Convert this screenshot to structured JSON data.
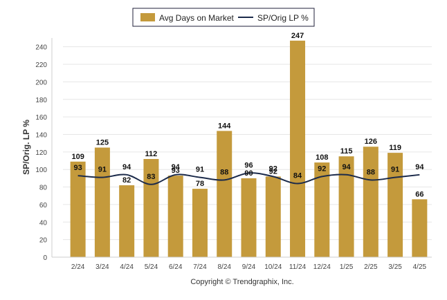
{
  "chart_data": {
    "type": "bar",
    "categories": [
      "2/24",
      "3/24",
      "4/24",
      "5/24",
      "6/24",
      "7/24",
      "8/24",
      "9/24",
      "10/24",
      "11/24",
      "12/24",
      "1/25",
      "2/25",
      "3/25",
      "4/25"
    ],
    "series": [
      {
        "name": "Avg Days on Market",
        "type": "bar",
        "color": "#c49a3c",
        "values": [
          109,
          125,
          82,
          112,
          93,
          78,
          144,
          90,
          92,
          247,
          108,
          115,
          126,
          119,
          66
        ]
      },
      {
        "name": "SP/Orig LP %",
        "type": "line",
        "color": "#1b2a4a",
        "values": [
          93,
          91,
          94,
          83,
          94,
          91,
          88,
          96,
          92,
          84,
          92,
          94,
          88,
          91,
          94
        ]
      }
    ],
    "ylabel": "SP/Orig. LP %",
    "ylim": [
      0,
      250
    ],
    "yticks": [
      0,
      20,
      40,
      60,
      80,
      100,
      120,
      140,
      160,
      180,
      200,
      220,
      240
    ],
    "grid": true,
    "legend_position": "top-center"
  },
  "copyright": "Copyright © Trendgraphix, Inc."
}
